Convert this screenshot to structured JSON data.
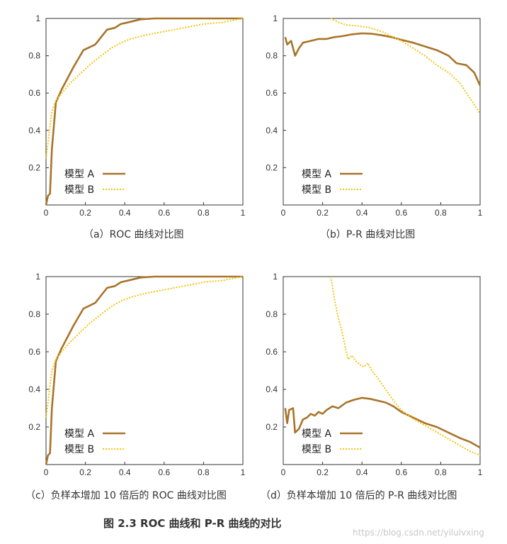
{
  "figure_caption": "图 2.3   ROC 曲线和 P-R 曲线的对比",
  "watermark": "https://blog.csdn.net/yilulvxing",
  "colors": {
    "model_a": "#a8742a",
    "model_b": "#f2c515",
    "axis": "#333333"
  },
  "chart_data": [
    {
      "type": "line",
      "caption": "（a）ROC 曲线对比图",
      "xlim": [
        0,
        1
      ],
      "ylim": [
        0,
        1
      ],
      "xticks": [
        "0",
        "0.2",
        "0.4",
        "0.6",
        "0.8",
        "1"
      ],
      "yticks": [
        "0.2",
        "0.4",
        "0.6",
        "0.8",
        "1"
      ],
      "legend_position": "bottom-left",
      "grid": false,
      "series": [
        {
          "name": "模型 A",
          "line_style": "solid",
          "x": [
            0,
            0.01,
            0.02,
            0.03,
            0.05,
            0.08,
            0.1,
            0.14,
            0.19,
            0.25,
            0.28,
            0.31,
            0.35,
            0.38,
            0.42,
            0.48,
            0.55,
            0.7,
            0.85,
            1
          ],
          "y": [
            0,
            0.05,
            0.06,
            0.3,
            0.55,
            0.62,
            0.66,
            0.74,
            0.83,
            0.86,
            0.9,
            0.94,
            0.95,
            0.97,
            0.98,
            0.995,
            1,
            1,
            1,
            1
          ]
        },
        {
          "name": "模型 B",
          "line_style": "dotted",
          "x": [
            0,
            0.01,
            0.02,
            0.03,
            0.05,
            0.08,
            0.12,
            0.17,
            0.22,
            0.28,
            0.33,
            0.38,
            0.43,
            0.5,
            0.6,
            0.7,
            0.8,
            0.9,
            0.95,
            1
          ],
          "y": [
            0.25,
            0.33,
            0.42,
            0.5,
            0.56,
            0.6,
            0.65,
            0.7,
            0.75,
            0.8,
            0.84,
            0.87,
            0.89,
            0.91,
            0.93,
            0.95,
            0.97,
            0.98,
            0.99,
            1
          ]
        }
      ]
    },
    {
      "type": "line",
      "caption": "（b）P-R 曲线对比图",
      "xlim": [
        0,
        1
      ],
      "ylim": [
        0,
        1
      ],
      "xticks": [
        "0",
        "0.2",
        "0.4",
        "0.6",
        "0.8",
        "1"
      ],
      "yticks": [
        "0.2",
        "0.4",
        "0.6",
        "0.8",
        "1"
      ],
      "legend_position": "bottom-left",
      "grid": false,
      "series": [
        {
          "name": "模型 A",
          "line_style": "solid",
          "x": [
            0.01,
            0.02,
            0.04,
            0.06,
            0.08,
            0.1,
            0.14,
            0.18,
            0.22,
            0.26,
            0.3,
            0.35,
            0.4,
            0.45,
            0.5,
            0.55,
            0.6,
            0.66,
            0.72,
            0.78,
            0.84,
            0.88,
            0.93,
            0.97,
            1
          ],
          "y": [
            0.9,
            0.86,
            0.88,
            0.8,
            0.84,
            0.87,
            0.88,
            0.89,
            0.89,
            0.9,
            0.905,
            0.915,
            0.92,
            0.918,
            0.91,
            0.9,
            0.885,
            0.87,
            0.85,
            0.83,
            0.8,
            0.76,
            0.75,
            0.71,
            0.64
          ]
        },
        {
          "name": "模型 B",
          "line_style": "dotted",
          "x": [
            0.24,
            0.28,
            0.32,
            0.38,
            0.44,
            0.5,
            0.56,
            0.6,
            0.66,
            0.72,
            0.78,
            0.84,
            0.9,
            0.95,
            1
          ],
          "y": [
            1,
            0.98,
            0.965,
            0.96,
            0.95,
            0.93,
            0.9,
            0.88,
            0.84,
            0.8,
            0.75,
            0.71,
            0.65,
            0.57,
            0.49
          ]
        }
      ]
    },
    {
      "type": "line",
      "caption": "（c）负样本增加 10 倍后的 ROC 曲线对比图",
      "xlim": [
        0,
        1
      ],
      "ylim": [
        0,
        1
      ],
      "xticks": [
        "0",
        "0.2",
        "0.4",
        "0.6",
        "0.8",
        "1"
      ],
      "yticks": [
        "0.2",
        "0.4",
        "0.6",
        "0.8",
        "1"
      ],
      "legend_position": "bottom-left",
      "grid": false,
      "series": [
        {
          "name": "模型 A",
          "line_style": "solid",
          "x": [
            0,
            0.01,
            0.02,
            0.03,
            0.05,
            0.08,
            0.1,
            0.14,
            0.19,
            0.25,
            0.28,
            0.31,
            0.35,
            0.38,
            0.42,
            0.48,
            0.55,
            0.7,
            0.85,
            1
          ],
          "y": [
            0,
            0.05,
            0.06,
            0.3,
            0.55,
            0.62,
            0.66,
            0.74,
            0.83,
            0.86,
            0.9,
            0.94,
            0.95,
            0.97,
            0.98,
            0.995,
            1,
            1,
            1,
            1
          ]
        },
        {
          "name": "模型 B",
          "line_style": "dotted",
          "x": [
            0,
            0.01,
            0.02,
            0.03,
            0.05,
            0.08,
            0.12,
            0.17,
            0.22,
            0.28,
            0.33,
            0.38,
            0.43,
            0.5,
            0.6,
            0.7,
            0.8,
            0.9,
            0.95,
            1
          ],
          "y": [
            0.25,
            0.33,
            0.42,
            0.5,
            0.56,
            0.6,
            0.65,
            0.7,
            0.75,
            0.8,
            0.84,
            0.87,
            0.89,
            0.91,
            0.93,
            0.95,
            0.97,
            0.98,
            0.99,
            1
          ]
        }
      ]
    },
    {
      "type": "line",
      "caption": "（d）负样本增加 10 倍后的 P-R 曲线对比图",
      "xlim": [
        0,
        1
      ],
      "ylim": [
        0,
        1
      ],
      "xticks": [
        "0",
        "0.2",
        "0.4",
        "0.6",
        "0.8",
        "1"
      ],
      "yticks": [
        "0.2",
        "0.4",
        "0.6",
        "0.8",
        "1"
      ],
      "legend_position": "bottom-left",
      "grid": false,
      "series": [
        {
          "name": "模型 A",
          "line_style": "solid",
          "x": [
            0.01,
            0.02,
            0.03,
            0.05,
            0.06,
            0.08,
            0.1,
            0.12,
            0.14,
            0.16,
            0.18,
            0.2,
            0.22,
            0.25,
            0.28,
            0.32,
            0.36,
            0.4,
            0.44,
            0.48,
            0.52,
            0.56,
            0.6,
            0.66,
            0.72,
            0.78,
            0.84,
            0.9,
            0.95,
            1
          ],
          "y": [
            0.3,
            0.22,
            0.29,
            0.3,
            0.17,
            0.19,
            0.24,
            0.25,
            0.27,
            0.26,
            0.28,
            0.27,
            0.29,
            0.31,
            0.3,
            0.33,
            0.345,
            0.355,
            0.35,
            0.34,
            0.33,
            0.31,
            0.28,
            0.25,
            0.22,
            0.2,
            0.17,
            0.14,
            0.12,
            0.09
          ]
        },
        {
          "name": "模型 B",
          "line_style": "dotted",
          "x": [
            0.24,
            0.25,
            0.26,
            0.28,
            0.3,
            0.32,
            0.33,
            0.35,
            0.37,
            0.39,
            0.41,
            0.43,
            0.45,
            0.48,
            0.52,
            0.56,
            0.6,
            0.65,
            0.7,
            0.75,
            0.8,
            0.85,
            0.9,
            0.95,
            1
          ],
          "y": [
            1,
            0.95,
            0.88,
            0.78,
            0.7,
            0.6,
            0.56,
            0.58,
            0.55,
            0.53,
            0.52,
            0.54,
            0.5,
            0.46,
            0.4,
            0.34,
            0.29,
            0.25,
            0.22,
            0.19,
            0.16,
            0.13,
            0.1,
            0.07,
            0.05
          ]
        }
      ]
    }
  ]
}
